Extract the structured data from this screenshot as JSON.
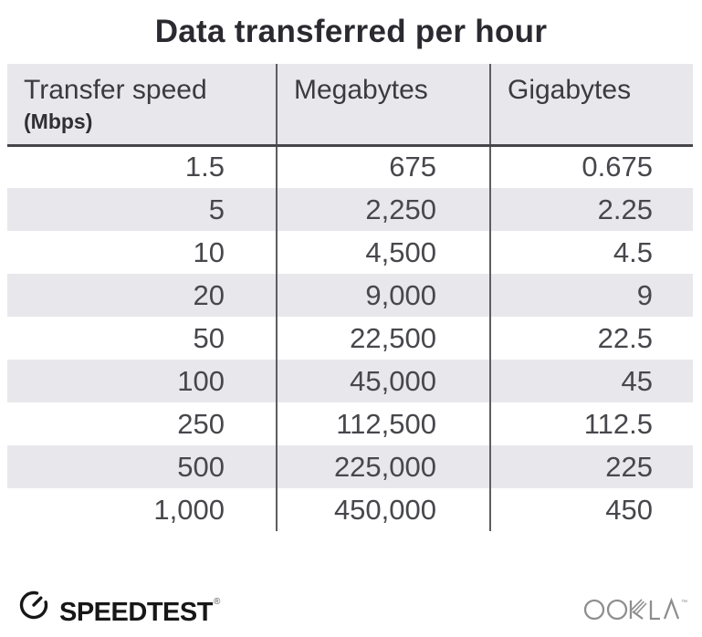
{
  "title": "Data transferred per hour",
  "table": {
    "columns": [
      {
        "label": "Transfer speed",
        "sublabel": "(Mbps)"
      },
      {
        "label": "Megabytes",
        "sublabel": ""
      },
      {
        "label": "Gigabytes",
        "sublabel": ""
      }
    ],
    "rows": [
      [
        "1.5",
        "675",
        "0.675"
      ],
      [
        "5",
        "2,250",
        "2.25"
      ],
      [
        "10",
        "4,500",
        "4.5"
      ],
      [
        "20",
        "9,000",
        "9"
      ],
      [
        "50",
        "22,500",
        "22.5"
      ],
      [
        "100",
        "45,000",
        "45"
      ],
      [
        "250",
        "112,500",
        "112.5"
      ],
      [
        "500",
        "225,000",
        "225"
      ],
      [
        "1,000",
        "450,000",
        "450"
      ]
    ]
  },
  "chart_data": {
    "type": "table",
    "title": "Data transferred per hour",
    "columns": [
      "Transfer speed (Mbps)",
      "Megabytes",
      "Gigabytes"
    ],
    "rows": [
      [
        1.5,
        675,
        0.675
      ],
      [
        5,
        2250,
        2.25
      ],
      [
        10,
        4500,
        4.5
      ],
      [
        20,
        9000,
        9
      ],
      [
        50,
        22500,
        22.5
      ],
      [
        100,
        45000,
        45
      ],
      [
        250,
        112500,
        112.5
      ],
      [
        500,
        225000,
        225
      ],
      [
        1000,
        450000,
        450
      ]
    ]
  },
  "footer": {
    "speedtest_label": "SPEEDTEST",
    "speedtest_trademark": "®",
    "ookla_label": "OOKLA",
    "ookla_trademark": "™"
  },
  "icons": {
    "speedtest_gauge": "gauge-icon",
    "ookla_wordmark": "ookla-logo"
  },
  "colors": {
    "row_stripe": "#e8e8ec",
    "header_bg": "#e8e8ec",
    "divider": "#5c5c61",
    "header_underline": "#45454a",
    "title_text": "#2a2a30",
    "body_text": "#47474c",
    "speedtest_black": "#171717",
    "ookla_gray": "#8e8e8e"
  }
}
